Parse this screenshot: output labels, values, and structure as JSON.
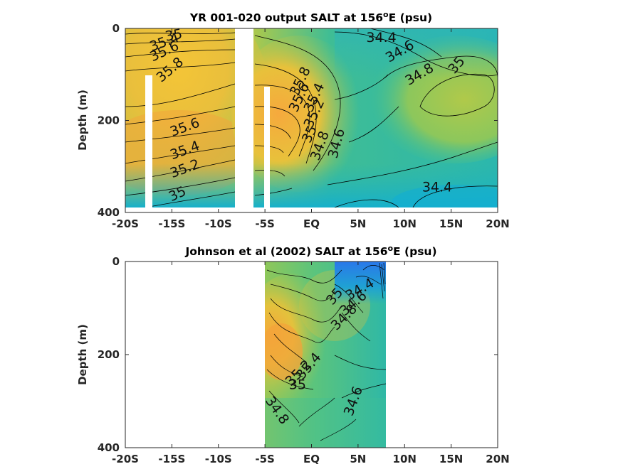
{
  "chart_data": [
    {
      "type": "contour",
      "title_parts": [
        "YR 001-020 output SALT at 156",
        "o",
        "E (psu)"
      ],
      "ylabel": "Depth (m)",
      "x_ticks": [
        "-20S",
        "-15S",
        "-10S",
        "-5S",
        "EQ",
        "5N",
        "10N",
        "15N",
        "20N"
      ],
      "x_tick_values": [
        -20,
        -15,
        -10,
        -5,
        0,
        5,
        10,
        15,
        20
      ],
      "y_ticks": [
        "0",
        "200",
        "400"
      ],
      "y_tick_values": [
        0,
        200,
        400
      ],
      "xlim": [
        -20,
        20
      ],
      "ylim": [
        400,
        0
      ],
      "data_extent": {
        "lat": [
          -20,
          20
        ],
        "depth": [
          0,
          385
        ]
      },
      "missing_gaps": [
        {
          "lat": [
            -8.1,
            -6.4
          ],
          "depth": [
            0,
            400
          ]
        },
        {
          "lat": [
            -17.8,
            -17.1
          ],
          "depth": [
            105,
            400
          ]
        },
        {
          "lat": [
            -5.1,
            -4.5
          ],
          "depth": [
            125,
            400
          ]
        }
      ],
      "contour_labels": [
        {
          "text": "35",
          "lat": -14.8,
          "depth": 15,
          "angle": -10
        },
        {
          "text": "35.4",
          "lat": -15.8,
          "depth": 30,
          "angle": -20
        },
        {
          "text": "35.6",
          "lat": -15.8,
          "depth": 50,
          "angle": -25
        },
        {
          "text": "35.8",
          "lat": -15.2,
          "depth": 90,
          "angle": -40
        },
        {
          "text": "35.6",
          "lat": -13.6,
          "depth": 215,
          "angle": -20
        },
        {
          "text": "35.4",
          "lat": -13.6,
          "depth": 265,
          "angle": -20
        },
        {
          "text": "35.2",
          "lat": -13.6,
          "depth": 305,
          "angle": -20
        },
        {
          "text": "35",
          "lat": -14.4,
          "depth": 360,
          "angle": -25
        },
        {
          "text": "34.4",
          "lat": 7.5,
          "depth": 20,
          "angle": 0
        },
        {
          "text": "34.6",
          "lat": 9.5,
          "depth": 50,
          "angle": -30
        },
        {
          "text": "34.8",
          "lat": 11.6,
          "depth": 100,
          "angle": -30
        },
        {
          "text": "35",
          "lat": 15.6,
          "depth": 80,
          "angle": -50
        },
        {
          "text": "35.8",
          "lat": -1.2,
          "depth": 115,
          "angle": -65
        },
        {
          "text": "35.6",
          "lat": -1.3,
          "depth": 150,
          "angle": -65
        },
        {
          "text": "35.4",
          "lat": 0.3,
          "depth": 150,
          "angle": -65
        },
        {
          "text": "35.2",
          "lat": 0.3,
          "depth": 185,
          "angle": -65
        },
        {
          "text": "35",
          "lat": -0.2,
          "depth": 230,
          "angle": -65
        },
        {
          "text": "34.8",
          "lat": 0.9,
          "depth": 255,
          "angle": -70
        },
        {
          "text": "34.6",
          "lat": 2.7,
          "depth": 250,
          "angle": -75
        },
        {
          "text": "34.4",
          "lat": 13.5,
          "depth": 345,
          "angle": 0
        }
      ]
    },
    {
      "type": "contour",
      "title_parts": [
        "Johnson et al (2002) SALT at 156",
        "o",
        "E (psu)"
      ],
      "ylabel": "Depth (m)",
      "x_ticks": [
        "-20S",
        "-15S",
        "-10S",
        "-5S",
        "EQ",
        "5N",
        "10N",
        "15N",
        "20N"
      ],
      "x_tick_values": [
        -20,
        -15,
        -10,
        -5,
        0,
        5,
        10,
        15,
        20
      ],
      "y_ticks": [
        "0",
        "200",
        "400"
      ],
      "y_tick_values": [
        0,
        200,
        400
      ],
      "xlim": [
        -20,
        20
      ],
      "ylim": [
        400,
        0
      ],
      "data_extent": {
        "lat": [
          -5,
          8
        ],
        "depth": [
          0,
          400
        ]
      },
      "contour_labels": [
        {
          "text": "34.4",
          "lat": 5.2,
          "depth": 60,
          "angle": -30
        },
        {
          "text": "34.6",
          "lat": 4.5,
          "depth": 90,
          "angle": -40
        },
        {
          "text": "34.8",
          "lat": 3.5,
          "depth": 120,
          "angle": -45
        },
        {
          "text": "35",
          "lat": 2.5,
          "depth": 75,
          "angle": -50
        },
        {
          "text": "35.4",
          "lat": -0.3,
          "depth": 225,
          "angle": -50
        },
        {
          "text": "35.2",
          "lat": -1.4,
          "depth": 240,
          "angle": -45
        },
        {
          "text": "35",
          "lat": -1.5,
          "depth": 265,
          "angle": 0
        },
        {
          "text": "34.8",
          "lat": -3.7,
          "depth": 320,
          "angle": 55
        },
        {
          "text": "34.6",
          "lat": 4.5,
          "depth": 300,
          "angle": -70
        }
      ]
    }
  ]
}
